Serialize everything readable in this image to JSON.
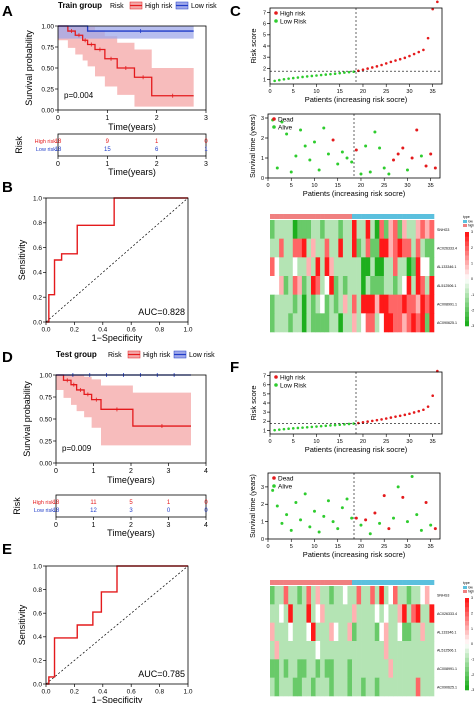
{
  "panel_letters": {
    "A": "A",
    "B": "B",
    "C": "C",
    "D": "D",
    "E": "E",
    "F": "F"
  },
  "colors": {
    "high": "#e41a1c",
    "low": "#1f3cc8",
    "high_band": "#f4a6a6",
    "low_band": "#9fa8ea",
    "dead": "#e41a1c",
    "alive": "#2ecc2e",
    "heat_high": "#e8191c",
    "heat_low": "#1cb01c",
    "anno_high": "#f08080",
    "anno_low": "#5bc0de"
  },
  "chart_data": [
    {
      "id": "A",
      "type": "line",
      "subtype": "kaplan-meier",
      "title": "Train group",
      "legend_title": "Risk",
      "legend": [
        "High risk",
        "Low risk"
      ],
      "xlabel": "Time(years)",
      "ylabel": "Survival probability",
      "xlim": [
        0,
        3
      ],
      "ylim": [
        0,
        1
      ],
      "xticks": [
        "0",
        "1",
        "2",
        "3"
      ],
      "yticks": [
        "0.00",
        "0.25",
        "0.50",
        "0.75",
        "1.00"
      ],
      "pvalue": "p=0.004",
      "series": [
        {
          "name": "High risk",
          "x": [
            0,
            0.2,
            0.35,
            0.5,
            0.6,
            0.75,
            0.95,
            1.2,
            1.55,
            1.9,
            2.75
          ],
          "y": [
            1,
            0.94,
            0.89,
            0.83,
            0.78,
            0.72,
            0.61,
            0.5,
            0.39,
            0.17,
            0.17
          ],
          "ci_upper": [
            1,
            1,
            1,
            1,
            0.99,
            0.95,
            0.88,
            0.8,
            0.72,
            0.5,
            0.5
          ],
          "ci_lower": [
            1,
            0.83,
            0.74,
            0.66,
            0.59,
            0.52,
            0.4,
            0.28,
            0.18,
            0.04,
            0.04
          ]
        },
        {
          "name": "Low risk",
          "x": [
            0,
            0.6,
            2.75
          ],
          "y": [
            1,
            0.94,
            0.94
          ],
          "ci_upper": [
            1,
            1,
            1
          ],
          "ci_lower": [
            1,
            0.85,
            0.85
          ]
        }
      ],
      "risk_table": {
        "title": "Risk",
        "rows": [
          {
            "label": "High risk",
            "values": [
              "18",
              "9",
              "1",
              "0"
            ]
          },
          {
            "label": "Low risk",
            "values": [
              "18",
              "15",
              "6",
              "1"
            ]
          }
        ],
        "xticks": [
          "0",
          "1",
          "2",
          "3"
        ],
        "xlabel": "Time(years)"
      }
    },
    {
      "id": "B",
      "type": "line",
      "subtype": "roc",
      "xlabel": "1−Specificity",
      "ylabel": "Sensitivity",
      "auc": "AUC=0.828",
      "xlim": [
        0,
        1
      ],
      "ylim": [
        0,
        1
      ],
      "xticks": [
        "0.0",
        "0.2",
        "0.4",
        "0.6",
        "0.8",
        "1.0"
      ],
      "yticks": [
        "0.0",
        "0.2",
        "0.4",
        "0.6",
        "0.8",
        "1.0"
      ],
      "x": [
        0,
        0.02,
        0.02,
        0.06,
        0.06,
        0.11,
        0.11,
        0.22,
        0.22,
        0.48,
        0.48,
        0.72,
        0.72,
        1
      ],
      "y": [
        0,
        0,
        0.22,
        0.22,
        0.5,
        0.5,
        0.55,
        0.55,
        0.78,
        0.78,
        1,
        1,
        1,
        1
      ]
    },
    {
      "id": "C",
      "type": "scatter",
      "subtype": "risk-score",
      "legend": [
        "High risk",
        "Low Risk"
      ],
      "xlabel": "Patients (increasing risk socre)",
      "ylabel": "Risk score",
      "xticks": [
        "0",
        "5",
        "10",
        "15",
        "20",
        "25",
        "30",
        "35"
      ],
      "yticks": [
        "1",
        "2",
        "3",
        "4",
        "5",
        "6",
        "7"
      ],
      "xlim": [
        0,
        37
      ],
      "ylim": [
        0.6,
        7.4
      ],
      "cutoff_x": 18,
      "cutoff_y": 1.15,
      "values": [
        0.28,
        0.35,
        0.42,
        0.48,
        0.53,
        0.58,
        0.63,
        0.68,
        0.72,
        0.76,
        0.8,
        0.84,
        0.88,
        0.92,
        0.97,
        1.02,
        1.06,
        1.1,
        1.18,
        1.28,
        1.38,
        1.48,
        1.58,
        1.7,
        1.84,
        1.98,
        2.1,
        2.22,
        2.34,
        2.5,
        2.68,
        2.86,
        3.05,
        4.1,
        6.7,
        7.35
      ]
    },
    {
      "id": "C2",
      "type": "scatter",
      "subtype": "survival-status",
      "legend": [
        "Dead",
        "Alive"
      ],
      "xlabel": "Patients (increasing risk socre)",
      "ylabel": "Survival time (years)",
      "xticks": [
        "0",
        "5",
        "10",
        "15",
        "20",
        "25",
        "30",
        "35"
      ],
      "yticks": [
        "0",
        "1",
        "2",
        "3"
      ],
      "xlim": [
        0,
        37
      ],
      "ylim": [
        0,
        3.2
      ],
      "cutoff_x": 18,
      "times": [
        2.9,
        0.5,
        2.8,
        2.2,
        0.3,
        1.1,
        2.4,
        1.6,
        0.9,
        1.8,
        0.4,
        2.5,
        1.2,
        1.9,
        0.7,
        1.3,
        1.0,
        0.8,
        1.4,
        0.2,
        1.6,
        0.3,
        2.3,
        1.5,
        0.5,
        0.2,
        0.9,
        1.2,
        1.5,
        0.4,
        1.0,
        2.4,
        1.1,
        0.6,
        1.2,
        0.5
      ],
      "status": [
        0,
        0,
        0,
        0,
        0,
        0,
        0,
        0,
        0,
        0,
        0,
        0,
        0,
        1,
        0,
        0,
        0,
        0,
        1,
        0,
        0,
        0,
        0,
        0,
        0,
        0,
        1,
        1,
        1,
        0,
        1,
        1,
        0,
        1,
        1,
        1
      ]
    },
    {
      "id": "C3",
      "type": "heatmap",
      "rows": [
        "SNHG3",
        "AC026333.4",
        "AL133346.1",
        "AL512506.1",
        "AC008991.1",
        "AC090625.1"
      ],
      "legend_title": "type",
      "legend": [
        "high",
        "low"
      ],
      "scale": [
        "3",
        "2",
        "1",
        "0",
        "-1",
        "-2",
        "-3"
      ],
      "groups": {
        "low": 18,
        "high": 18
      },
      "values": [
        [
          -2,
          -1,
          -1,
          -1,
          -1,
          -3,
          -2,
          -2,
          -2,
          -1,
          -1,
          -2,
          -1,
          -1,
          -1,
          -2,
          -1,
          -1,
          3,
          -1,
          -1,
          3,
          -1,
          -3,
          2,
          -2,
          1,
          2,
          -2,
          1,
          -1,
          -1,
          1,
          2,
          1,
          2
        ],
        [
          -1,
          -1,
          2,
          -1,
          -1,
          2,
          2,
          3,
          -1,
          1,
          -1,
          -1,
          2,
          -1,
          -1,
          3,
          -1,
          -1,
          3,
          -2,
          -1,
          2,
          -2,
          -2,
          3,
          3,
          1,
          2,
          3,
          2,
          2,
          -1,
          2,
          -1,
          -2,
          -2
        ],
        [
          2,
          0,
          -1,
          -1,
          -1,
          0,
          -1,
          -1,
          1,
          -1,
          3,
          -1,
          3,
          1,
          -1,
          -1,
          -1,
          -1,
          -1,
          -1,
          -3,
          -3,
          -1,
          -3,
          -3,
          -1,
          -1,
          2,
          -1,
          -1,
          -3,
          -2,
          3,
          0,
          0,
          -2
        ],
        [
          0,
          0,
          1,
          -2,
          -1,
          2,
          1,
          -2,
          -1,
          3,
          2,
          -1,
          0,
          3,
          -2,
          -1,
          -2,
          -1,
          -1,
          -1,
          -3,
          -1,
          -2,
          -2,
          -2,
          -1,
          -1,
          -2,
          -1,
          0,
          3,
          -1,
          3,
          2,
          -1,
          3
        ],
        [
          -2,
          -1,
          -1,
          -1,
          -1,
          -2,
          -1,
          -3,
          -1,
          -2,
          -1,
          0,
          -2,
          -1,
          -2,
          -1,
          1,
          -1,
          2,
          -1,
          3,
          3,
          3,
          1,
          3,
          3,
          2,
          2,
          2,
          3,
          2,
          2,
          1,
          3,
          2,
          3
        ],
        [
          -2,
          -1,
          -1,
          -1,
          -2,
          -1,
          -1,
          -3,
          -1,
          -2,
          -2,
          -2,
          -2,
          -1,
          -1,
          -3,
          -1,
          -1,
          1,
          -1,
          0,
          2,
          2,
          -1,
          0,
          3,
          3,
          2,
          2,
          1,
          2,
          3,
          2,
          3,
          -2,
          3
        ]
      ]
    },
    {
      "id": "D",
      "type": "line",
      "subtype": "kaplan-meier",
      "title": "Test group",
      "legend_title": "Risk",
      "legend": [
        "High risk",
        "Low risk"
      ],
      "xlabel": "Time(years)",
      "ylabel": "Survival probability",
      "xlim": [
        0,
        4
      ],
      "ylim": [
        0,
        1
      ],
      "xticks": [
        "0",
        "1",
        "2",
        "3",
        "4"
      ],
      "yticks": [
        "0.00",
        "0.25",
        "0.50",
        "0.75",
        "1.00"
      ],
      "pvalue": "p=0.009",
      "series": [
        {
          "name": "High risk",
          "x": [
            0,
            0.2,
            0.4,
            0.55,
            0.75,
            0.95,
            1.2,
            2.05,
            3.6
          ],
          "y": [
            1,
            0.94,
            0.89,
            0.83,
            0.78,
            0.72,
            0.61,
            0.42,
            0.42
          ],
          "ci_upper": [
            1,
            1,
            1,
            1,
            0.98,
            0.95,
            0.88,
            0.8,
            0.8
          ],
          "ci_lower": [
            1,
            0.83,
            0.74,
            0.66,
            0.59,
            0.52,
            0.4,
            0.2,
            0.2
          ]
        },
        {
          "name": "Low risk",
          "x": [
            0,
            3.6
          ],
          "y": [
            1,
            1
          ],
          "ci_upper": [
            1,
            1
          ],
          "ci_lower": [
            1,
            1
          ]
        }
      ],
      "risk_table": {
        "title": "Risk",
        "rows": [
          {
            "label": "High risk",
            "values": [
              "18",
              "11",
              "5",
              "1",
              "0"
            ]
          },
          {
            "label": "Low risk",
            "values": [
              "18",
              "12",
              "3",
              "0",
              "0"
            ]
          }
        ],
        "xticks": [
          "0",
          "1",
          "2",
          "3",
          "4"
        ],
        "xlabel": "Time(years)"
      }
    },
    {
      "id": "E",
      "type": "line",
      "subtype": "roc",
      "xlabel": "1−Specificity",
      "ylabel": "Sensitivity",
      "auc": "AUC=0.785",
      "xlim": [
        0,
        1
      ],
      "ylim": [
        0,
        1
      ],
      "xticks": [
        "0.0",
        "0.2",
        "0.4",
        "0.6",
        "0.8",
        "1.0"
      ],
      "yticks": [
        "0.0",
        "0.2",
        "0.4",
        "0.6",
        "0.8",
        "1.0"
      ],
      "x": [
        0,
        0.02,
        0.02,
        0.06,
        0.06,
        0.22,
        0.22,
        0.33,
        0.33,
        0.39,
        0.39,
        0.5,
        0.5,
        0.61,
        0.61,
        1
      ],
      "y": [
        0,
        0,
        0.06,
        0.06,
        0.39,
        0.39,
        0.5,
        0.5,
        0.61,
        0.61,
        0.78,
        0.78,
        1,
        1,
        1,
        1
      ]
    },
    {
      "id": "F",
      "type": "scatter",
      "subtype": "risk-score",
      "legend": [
        "High risk",
        "Low Risk"
      ],
      "xlabel": "Patients (increasing risk socre)",
      "ylabel": "Risk score",
      "xticks": [
        "0",
        "5",
        "10",
        "15",
        "20",
        "25",
        "30",
        "35"
      ],
      "yticks": [
        "1",
        "2",
        "3",
        "4",
        "5",
        "6",
        "7"
      ],
      "xlim": [
        0,
        37
      ],
      "ylim": [
        0.6,
        7.4
      ],
      "cutoff_x": 18,
      "cutoff_y": 1.15,
      "values": [
        0.42,
        0.48,
        0.53,
        0.58,
        0.62,
        0.66,
        0.7,
        0.74,
        0.78,
        0.82,
        0.86,
        0.9,
        0.94,
        0.98,
        1.02,
        1.06,
        1.1,
        1.14,
        1.2,
        1.28,
        1.36,
        1.44,
        1.52,
        1.6,
        1.7,
        1.8,
        1.9,
        2.0,
        2.1,
        2.22,
        2.36,
        2.5,
        2.66,
        3.0,
        4.2,
        6.9
      ]
    },
    {
      "id": "F2",
      "type": "scatter",
      "subtype": "survival-status",
      "legend": [
        "Dead",
        "Alive"
      ],
      "xlabel": "Patients (increasing risk socre)",
      "ylabel": "Survival time (years)",
      "xticks": [
        "0",
        "5",
        "10",
        "15",
        "20",
        "25",
        "30",
        "35"
      ],
      "yticks": [
        "0",
        "1",
        "2",
        "3"
      ],
      "xlim": [
        0,
        37
      ],
      "ylim": [
        0,
        3.8
      ],
      "cutoff_x": 18,
      "times": [
        2.8,
        1.9,
        0.9,
        1.4,
        0.5,
        2.1,
        1.1,
        2.6,
        0.7,
        1.6,
        0.4,
        1.3,
        2.2,
        1.0,
        0.6,
        1.8,
        2.3,
        1.2,
        1.2,
        0.8,
        1.1,
        0.3,
        1.5,
        0.9,
        2.5,
        0.6,
        1.2,
        3.0,
        2.4,
        1.0,
        3.6,
        1.4,
        0.5,
        2.1,
        0.8,
        0.6
      ],
      "status": [
        0,
        0,
        0,
        0,
        0,
        0,
        0,
        0,
        0,
        0,
        0,
        0,
        0,
        0,
        0,
        0,
        0,
        0,
        1,
        0,
        1,
        0,
        1,
        0,
        1,
        1,
        0,
        0,
        1,
        0,
        0,
        0,
        0,
        1,
        0,
        1
      ]
    },
    {
      "id": "F3",
      "type": "heatmap",
      "rows": [
        "SNHG3",
        "AC026333.4",
        "AL133346.1",
        "AL512506.1",
        "AC008991.1",
        "AC090625.1"
      ],
      "legend_title": "type",
      "legend": [
        "high",
        "low"
      ],
      "scale": [
        "3",
        "2",
        "1",
        "0",
        "-1",
        "-2",
        "-3"
      ],
      "groups": {
        "low": 18,
        "high": 18
      },
      "values": [
        [
          -2,
          -1,
          -1,
          2,
          -1,
          -1,
          -2,
          -1,
          2,
          -1,
          1,
          -1,
          -1,
          -2,
          -1,
          -1,
          0,
          -1,
          -1,
          2,
          -1,
          -1,
          2,
          -1,
          3,
          -1,
          0,
          2,
          -1,
          -1,
          -2,
          -1,
          -1,
          0,
          1,
          0
        ],
        [
          -1,
          -1,
          0,
          -1,
          3,
          -1,
          -1,
          -1,
          3,
          -1,
          0,
          1,
          -1,
          -1,
          -1,
          -1,
          -1,
          -1,
          1,
          -1,
          -1,
          -1,
          -1,
          0,
          -1,
          0,
          -1,
          -1,
          1,
          3,
          -1,
          2,
          3,
          -1,
          -1,
          3
        ],
        [
          1,
          -1,
          -1,
          -1,
          0,
          -1,
          -1,
          -1,
          0,
          3,
          -1,
          -1,
          -1,
          1,
          0,
          -1,
          -1,
          1,
          -2,
          -1,
          -1,
          -1,
          -1,
          -2,
          0,
          1,
          -1,
          -1,
          0,
          -2,
          -2,
          -1,
          -1,
          1,
          -1,
          -1
        ],
        [
          -1,
          1,
          -1,
          -1,
          -1,
          -1,
          -1,
          -1,
          -1,
          -1,
          0,
          -1,
          -1,
          -1,
          -1,
          -1,
          -1,
          -1,
          -1,
          -1,
          -1,
          -1,
          -1,
          -1,
          -1,
          1,
          -1,
          -1,
          -1,
          -1,
          -1,
          -1,
          -1,
          -1,
          -1,
          -1
        ],
        [
          -2,
          -2,
          -1,
          -2,
          -1,
          -1,
          -2,
          -2,
          -1,
          -1,
          -2,
          -1,
          -2,
          -2,
          -1,
          -1,
          -1,
          -2,
          -1,
          -1,
          -1,
          -1,
          -1,
          -1,
          -1,
          -1,
          1,
          -1,
          -1,
          -1,
          -1,
          -1,
          -1,
          -1,
          -1,
          -1
        ],
        [
          -1,
          -2,
          -1,
          -1,
          -1,
          -2,
          -2,
          -1,
          -1,
          -2,
          -1,
          -1,
          -1,
          -2,
          -1,
          -1,
          -1,
          -2,
          -1,
          -1,
          -2,
          -1,
          -1,
          -2,
          -1,
          -1,
          -1,
          -1,
          -1,
          -1,
          -1,
          -1,
          2,
          -1,
          -1,
          -1
        ]
      ]
    }
  ]
}
